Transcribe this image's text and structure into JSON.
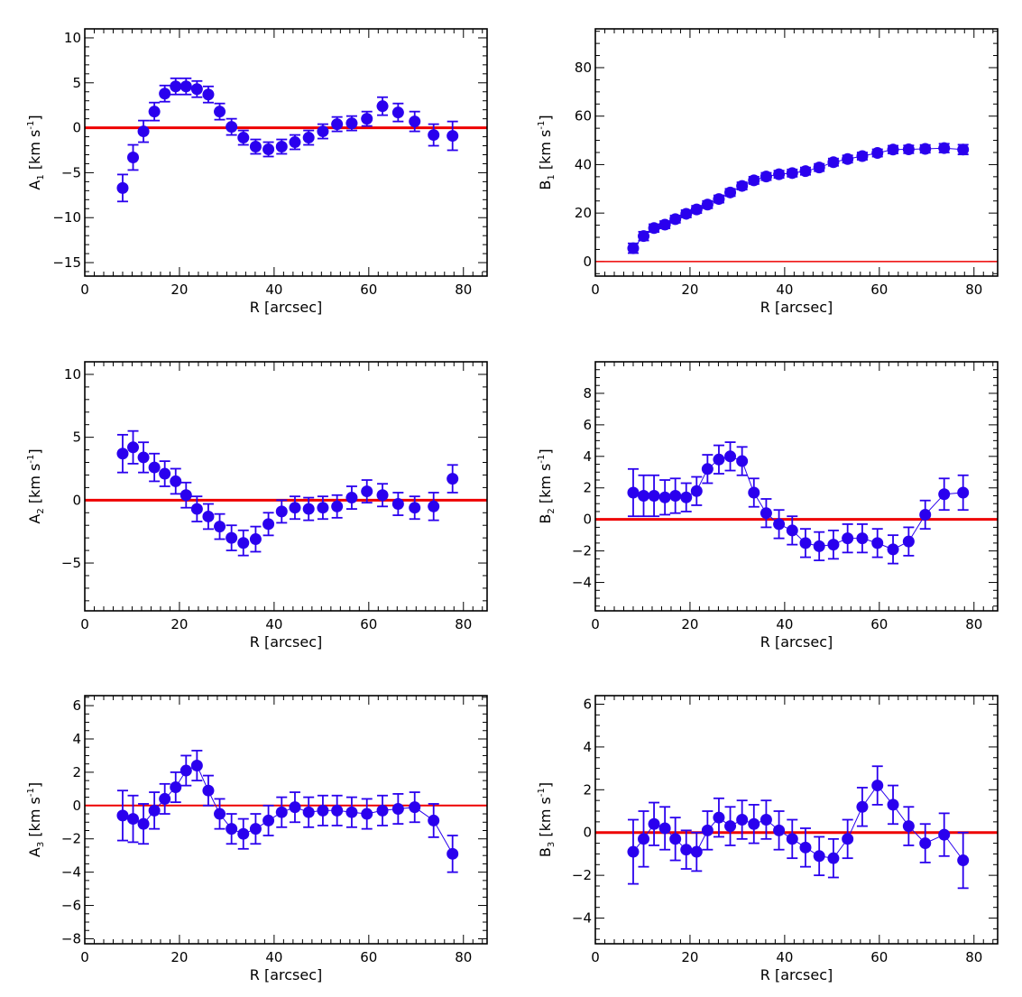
{
  "figure": {
    "colors": {
      "points": "#2a00ee",
      "zero_line": "#ee0000",
      "axes": "#000000"
    }
  },
  "chart_data": [
    {
      "type": "scatter",
      "id": "A1",
      "ylabel": {
        "base": "A",
        "sub": "1",
        "units_pre": "[km s",
        "units_sup": "-1",
        "units_post": "]"
      },
      "xlabel": "R [arcsec]",
      "xlim": [
        0,
        85
      ],
      "ylim": [
        -16.5,
        11
      ],
      "xticks": [
        0,
        20,
        40,
        60,
        80
      ],
      "xtick_labels": [
        "0",
        "20",
        "40",
        "60",
        "80"
      ],
      "yticks": [
        -15,
        -10,
        -5,
        0,
        5,
        10
      ],
      "ytick_labels": [
        "-15",
        "-10",
        "-5",
        "0",
        "5",
        "10"
      ],
      "x_minor_step": 2,
      "y_minor_step": 1,
      "zero_line": true,
      "zero_line_width": "thick",
      "connect_points": false,
      "x": [
        8,
        10.2,
        12.4,
        14.7,
        16.9,
        19.2,
        21.4,
        23.7,
        26.1,
        28.5,
        31,
        33.5,
        36.1,
        38.8,
        41.6,
        44.4,
        47.3,
        50.3,
        53.3,
        56.4,
        59.6,
        62.9,
        66.2,
        69.7,
        73.7,
        77.7
      ],
      "y": [
        -6.7,
        -3.3,
        -0.4,
        1.8,
        3.8,
        4.6,
        4.6,
        4.3,
        3.7,
        1.8,
        0.1,
        -1.1,
        -2.1,
        -2.4,
        -2.1,
        -1.6,
        -1.1,
        -0.4,
        0.4,
        0.5,
        1.0,
        2.4,
        1.7,
        0.7,
        -0.8,
        -0.9
      ],
      "err": [
        1.5,
        1.4,
        1.2,
        1.0,
        0.9,
        0.9,
        0.9,
        0.9,
        0.9,
        0.9,
        0.9,
        0.8,
        0.8,
        0.8,
        0.8,
        0.8,
        0.8,
        0.8,
        0.8,
        0.8,
        0.8,
        1.0,
        1.0,
        1.1,
        1.2,
        1.6
      ]
    },
    {
      "type": "scatter",
      "id": "B1",
      "ylabel": {
        "base": "B",
        "sub": "1",
        "units_pre": "[km s",
        "units_sup": "-1",
        "units_post": "]"
      },
      "xlabel": "R [arcsec]",
      "xlim": [
        0,
        85
      ],
      "ylim": [
        -6,
        96
      ],
      "xticks": [
        0,
        20,
        40,
        60,
        80
      ],
      "xtick_labels": [
        "0",
        "20",
        "40",
        "60",
        "80"
      ],
      "yticks": [
        0,
        20,
        40,
        60,
        80
      ],
      "ytick_labels": [
        "0",
        "20",
        "40",
        "60",
        "80"
      ],
      "x_minor_step": 2,
      "y_minor_step": 5,
      "zero_line": true,
      "zero_line_width": "thin",
      "connect_points": true,
      "x": [
        8,
        10.2,
        12.4,
        14.7,
        16.9,
        19.2,
        21.4,
        23.7,
        26.1,
        28.5,
        31,
        33.5,
        36.1,
        38.8,
        41.6,
        44.4,
        47.3,
        50.3,
        53.3,
        56.4,
        59.6,
        62.9,
        66.2,
        69.7,
        73.7,
        77.7
      ],
      "y": [
        5.5,
        10.5,
        13.8,
        15.2,
        17.5,
        19.7,
        21.5,
        23.5,
        25.8,
        28.5,
        31.2,
        33.5,
        35.1,
        36.0,
        36.5,
        37.3,
        38.8,
        41.0,
        42.3,
        43.5,
        44.8,
        46.2,
        46.3,
        46.5,
        46.8,
        46.2
      ],
      "err": [
        2.0,
        1.8,
        1.6,
        1.5,
        1.5,
        1.5,
        1.5,
        1.5,
        1.5,
        1.5,
        1.5,
        1.5,
        1.5,
        1.5,
        1.5,
        1.5,
        1.5,
        1.5,
        1.5,
        1.5,
        1.5,
        1.6,
        1.6,
        1.6,
        1.8,
        2.0
      ]
    },
    {
      "type": "scatter",
      "id": "A2",
      "ylabel": {
        "base": "A",
        "sub": "2",
        "units_pre": "[km s",
        "units_sup": "-1",
        "units_post": "]"
      },
      "xlabel": "R [arcsec]",
      "xlim": [
        0,
        85
      ],
      "ylim": [
        -8.8,
        11
      ],
      "xticks": [
        0,
        20,
        40,
        60,
        80
      ],
      "xtick_labels": [
        "0",
        "20",
        "40",
        "60",
        "80"
      ],
      "yticks": [
        -5,
        0,
        5,
        10
      ],
      "ytick_labels": [
        "-5",
        "0",
        "5",
        "10"
      ],
      "x_minor_step": 2,
      "y_minor_step": 1,
      "zero_line": true,
      "zero_line_width": "thick",
      "connect_points": false,
      "x": [
        8,
        10.2,
        12.4,
        14.7,
        16.9,
        19.2,
        21.4,
        23.7,
        26.1,
        28.5,
        31,
        33.5,
        36.1,
        38.8,
        41.6,
        44.4,
        47.3,
        50.3,
        53.3,
        56.4,
        59.6,
        62.9,
        66.2,
        69.7,
        73.7,
        77.7
      ],
      "y": [
        3.7,
        4.2,
        3.4,
        2.6,
        2.1,
        1.5,
        0.4,
        -0.7,
        -1.3,
        -2.1,
        -3.0,
        -3.4,
        -3.1,
        -1.9,
        -0.9,
        -0.6,
        -0.7,
        -0.6,
        -0.5,
        0.2,
        0.7,
        0.4,
        -0.3,
        -0.6,
        -0.5,
        1.7
      ],
      "err": [
        1.5,
        1.3,
        1.2,
        1.1,
        1.0,
        1.0,
        1.0,
        1.0,
        1.0,
        1.0,
        1.0,
        1.0,
        1.0,
        0.9,
        0.9,
        0.9,
        0.9,
        0.9,
        0.9,
        0.9,
        0.9,
        0.9,
        0.9,
        0.9,
        1.1,
        1.1
      ]
    },
    {
      "type": "scatter",
      "id": "B2",
      "ylabel": {
        "base": "B",
        "sub": "2",
        "units_pre": "[km s",
        "units_sup": "-1",
        "units_post": "]"
      },
      "xlabel": "R [arcsec]",
      "xlim": [
        0,
        85
      ],
      "ylim": [
        -5.8,
        10
      ],
      "xticks": [
        0,
        20,
        40,
        60,
        80
      ],
      "xtick_labels": [
        "0",
        "20",
        "40",
        "60",
        "80"
      ],
      "yticks": [
        -4,
        -2,
        0,
        2,
        4,
        6,
        8
      ],
      "ytick_labels": [
        "-4",
        "-2",
        "0",
        "2",
        "4",
        "6",
        "8"
      ],
      "x_minor_step": 2,
      "y_minor_step": 0.5,
      "zero_line": true,
      "zero_line_width": "thick",
      "connect_points": true,
      "x": [
        8,
        10.2,
        12.4,
        14.7,
        16.9,
        19.2,
        21.4,
        23.7,
        26.1,
        28.5,
        31,
        33.5,
        36.1,
        38.8,
        41.6,
        44.4,
        47.3,
        50.3,
        53.3,
        56.4,
        59.6,
        62.9,
        66.2,
        69.7,
        73.7,
        77.7
      ],
      "y": [
        1.7,
        1.5,
        1.5,
        1.4,
        1.5,
        1.4,
        1.8,
        3.2,
        3.8,
        4.0,
        3.7,
        1.7,
        0.4,
        -0.3,
        -0.7,
        -1.5,
        -1.7,
        -1.6,
        -1.2,
        -1.2,
        -1.5,
        -1.9,
        -1.4,
        0.3,
        1.6,
        1.7
      ],
      "err": [
        1.5,
        1.3,
        1.3,
        1.1,
        1.1,
        0.9,
        0.9,
        0.9,
        0.9,
        0.9,
        0.9,
        0.9,
        0.9,
        0.9,
        0.9,
        0.9,
        0.9,
        0.9,
        0.9,
        0.9,
        0.9,
        0.9,
        0.9,
        0.9,
        1.0,
        1.1
      ]
    },
    {
      "type": "scatter",
      "id": "A3",
      "ylabel": {
        "base": "A",
        "sub": "3",
        "units_pre": "[km s",
        "units_sup": "-1",
        "units_post": "]"
      },
      "xlabel": "R [arcsec]",
      "xlim": [
        0,
        85
      ],
      "ylim": [
        -8.3,
        6.6
      ],
      "xticks": [
        0,
        20,
        40,
        60,
        80
      ],
      "xtick_labels": [
        "0",
        "20",
        "40",
        "60",
        "80"
      ],
      "yticks": [
        -8,
        -6,
        -4,
        -2,
        0,
        2,
        4,
        6
      ],
      "ytick_labels": [
        "-8",
        "-6",
        "-4",
        "-2",
        "0",
        "2",
        "4",
        "6"
      ],
      "x_minor_step": 2,
      "y_minor_step": 0.5,
      "zero_line": true,
      "zero_line_width": "medium",
      "connect_points": true,
      "x": [
        8,
        10.2,
        12.4,
        14.7,
        16.9,
        19.2,
        21.4,
        23.7,
        26.1,
        28.5,
        31,
        33.5,
        36.1,
        38.8,
        41.6,
        44.4,
        47.3,
        50.3,
        53.3,
        56.4,
        59.6,
        62.9,
        66.2,
        69.7,
        73.7,
        77.7
      ],
      "y": [
        -0.6,
        -0.8,
        -1.1,
        -0.3,
        0.4,
        1.1,
        2.1,
        2.4,
        0.9,
        -0.5,
        -1.4,
        -1.7,
        -1.4,
        -0.9,
        -0.4,
        -0.1,
        -0.4,
        -0.3,
        -0.3,
        -0.4,
        -0.5,
        -0.3,
        -0.2,
        -0.1,
        -0.9,
        -2.9
      ],
      "err": [
        1.5,
        1.4,
        1.2,
        1.1,
        0.9,
        0.9,
        0.9,
        0.9,
        0.9,
        0.9,
        0.9,
        0.9,
        0.9,
        0.9,
        0.9,
        0.9,
        0.9,
        0.9,
        0.9,
        0.9,
        0.9,
        0.9,
        0.9,
        0.9,
        1.0,
        1.1
      ]
    },
    {
      "type": "scatter",
      "id": "B3",
      "ylabel": {
        "base": "B",
        "sub": "3",
        "units_pre": "[km s",
        "units_sup": "-1",
        "units_post": "]"
      },
      "xlabel": "R [arcsec]",
      "xlim": [
        0,
        85
      ],
      "ylim": [
        -5.2,
        6.4
      ],
      "xticks": [
        0,
        20,
        40,
        60,
        80
      ],
      "xtick_labels": [
        "0",
        "20",
        "40",
        "60",
        "80"
      ],
      "yticks": [
        -4,
        -2,
        0,
        2,
        4,
        6
      ],
      "ytick_labels": [
        "-4",
        "-2",
        "0",
        "2",
        "4",
        "6"
      ],
      "x_minor_step": 2,
      "y_minor_step": 0.5,
      "zero_line": true,
      "zero_line_width": "thick",
      "connect_points": true,
      "x": [
        8,
        10.2,
        12.4,
        14.7,
        16.9,
        19.2,
        21.4,
        23.7,
        26.1,
        28.5,
        31,
        33.5,
        36.1,
        38.8,
        41.6,
        44.4,
        47.3,
        50.3,
        53.3,
        56.4,
        59.6,
        62.9,
        66.2,
        69.7,
        73.7,
        77.7
      ],
      "y": [
        -0.9,
        -0.3,
        0.4,
        0.2,
        -0.3,
        -0.8,
        -0.9,
        0.1,
        0.7,
        0.3,
        0.6,
        0.4,
        0.6,
        0.1,
        -0.3,
        -0.7,
        -1.1,
        -1.2,
        -0.3,
        1.2,
        2.2,
        1.3,
        0.3,
        -0.5,
        -0.1,
        -1.3
      ],
      "err": [
        1.5,
        1.3,
        1.0,
        1.0,
        1.0,
        0.9,
        0.9,
        0.9,
        0.9,
        0.9,
        0.9,
        0.9,
        0.9,
        0.9,
        0.9,
        0.9,
        0.9,
        0.9,
        0.9,
        0.9,
        0.9,
        0.9,
        0.9,
        0.9,
        1.0,
        1.3
      ]
    }
  ]
}
